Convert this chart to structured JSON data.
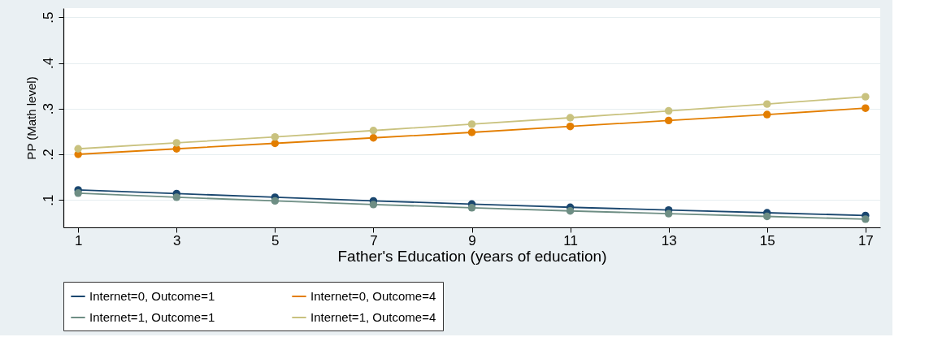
{
  "chart_data": {
    "type": "line",
    "xlabel": "Father's Education (years of education)",
    "ylabel": "PP (Math level)",
    "x": [
      1,
      3,
      5,
      7,
      9,
      11,
      13,
      15,
      17
    ],
    "xlim": [
      0.7,
      17.3
    ],
    "xticks": [
      1,
      3,
      5,
      7,
      9,
      11,
      13,
      15,
      17
    ],
    "ylim": [
      0.04,
      0.52
    ],
    "yticks": [
      {
        "value": 0.1,
        "label": ".1"
      },
      {
        "value": 0.2,
        "label": ".2"
      },
      {
        "value": 0.3,
        "label": ".3"
      },
      {
        "value": 0.4,
        "label": ".4"
      },
      {
        "value": 0.5,
        "label": ".5"
      }
    ],
    "grid": "y",
    "legend": "bottom",
    "marker": "circle",
    "line_style": "solid",
    "series": [
      {
        "name": "Internet=0, Outcome=1",
        "color": "#1a476f",
        "values": [
          0.122,
          0.114,
          0.106,
          0.098,
          0.091,
          0.084,
          0.078,
          0.072,
          0.066
        ]
      },
      {
        "name": "Internet=0, Outcome=4",
        "color": "#e37e00",
        "values": [
          0.2,
          0.212,
          0.224,
          0.236,
          0.248,
          0.261,
          0.274,
          0.287,
          0.301
        ]
      },
      {
        "name": "Internet=1, Outcome=1",
        "color": "#6e8e84",
        "values": [
          0.115,
          0.106,
          0.098,
          0.09,
          0.083,
          0.076,
          0.07,
          0.064,
          0.058
        ]
      },
      {
        "name": "Internet=1, Outcome=4",
        "color": "#c9c27f",
        "values": [
          0.212,
          0.225,
          0.238,
          0.252,
          0.266,
          0.28,
          0.295,
          0.31,
          0.326
        ]
      }
    ]
  }
}
